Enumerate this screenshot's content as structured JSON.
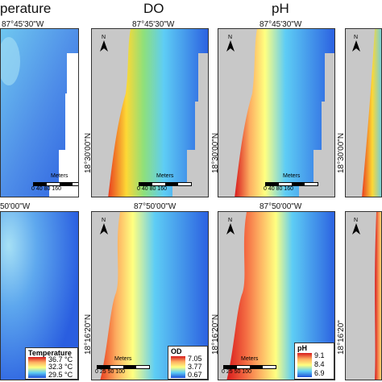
{
  "titles": {
    "temperature": "perature",
    "do": "DO",
    "ph": "pH"
  },
  "coords": {
    "row1_top": "87°45'30\"W",
    "row2_top_left": "50'00\"W",
    "row2_top": "87°50'00\"W",
    "row1_side": "18°30'00\"N",
    "row2_side": "18°16'20\"N",
    "row1_side_partial": "18°30'00\"N",
    "row2_side_partial": "18°16'20\""
  },
  "scales": {
    "label": "Meters",
    "row1_ticks": "0 40 80   160",
    "row2_ticks": "0 25 50   100"
  },
  "legends": {
    "temperature": {
      "title": "Temperature",
      "max": "36.7 °C",
      "mid": "32.3 °C",
      "min": "29.5 °C"
    },
    "do": {
      "title": "OD",
      "max": "7.05",
      "mid": "3.77",
      "min": "0.67"
    },
    "ph": {
      "title": "pH",
      "max": "9.1",
      "mid": "8.4",
      "min": "6.9"
    }
  },
  "north_label": "N"
}
